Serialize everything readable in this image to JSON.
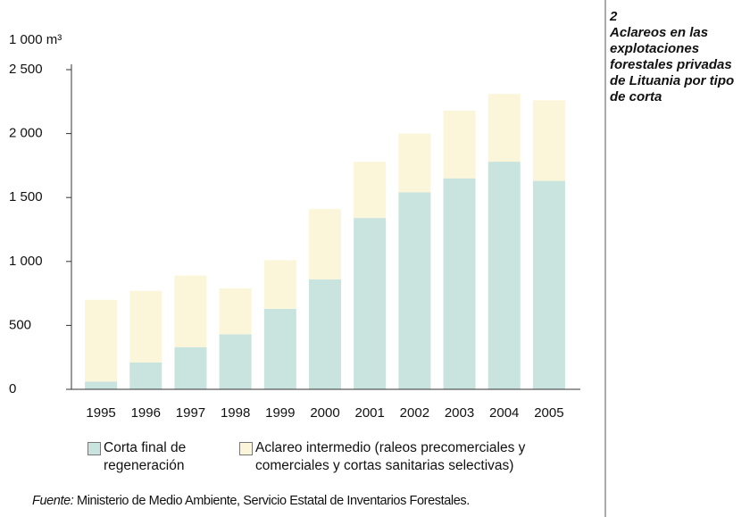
{
  "chart_data": {
    "type": "stacked_bar",
    "number": "2",
    "title": "Aclareos en las explotaciones forestales privadas de Lituania por tipo de corta",
    "y_label": "1 000 m³",
    "categories": [
      "1995",
      "1996",
      "1997",
      "1998",
      "1999",
      "2000",
      "2001",
      "2002",
      "2003",
      "2004",
      "2005"
    ],
    "series": [
      {
        "name": "Corta final de regeneración",
        "color": "#c9e3df",
        "values": [
          60,
          210,
          330,
          430,
          630,
          860,
          1340,
          1540,
          1650,
          1780,
          1630
        ]
      },
      {
        "name": "Aclareo intermedio (raleos precomerciales y comerciales y cortas sanitarias selectivas)",
        "color": "#fbf6d9",
        "values": [
          640,
          560,
          560,
          360,
          380,
          550,
          440,
          460,
          530,
          530,
          630
        ]
      }
    ],
    "ylim": [
      0,
      2500
    ],
    "yticks": [
      0,
      500,
      {
        "value": 1000,
        "label": "1 000"
      },
      {
        "value": 1500,
        "label": "1 500"
      },
      {
        "value": 2000,
        "label": "2 000"
      },
      {
        "value": 2500,
        "label": "2 500"
      }
    ],
    "grid": false,
    "source_label": "Fuente:",
    "source": "Ministerio de Medio Ambiente, Servicio Estatal de Inventarios Forestales."
  }
}
